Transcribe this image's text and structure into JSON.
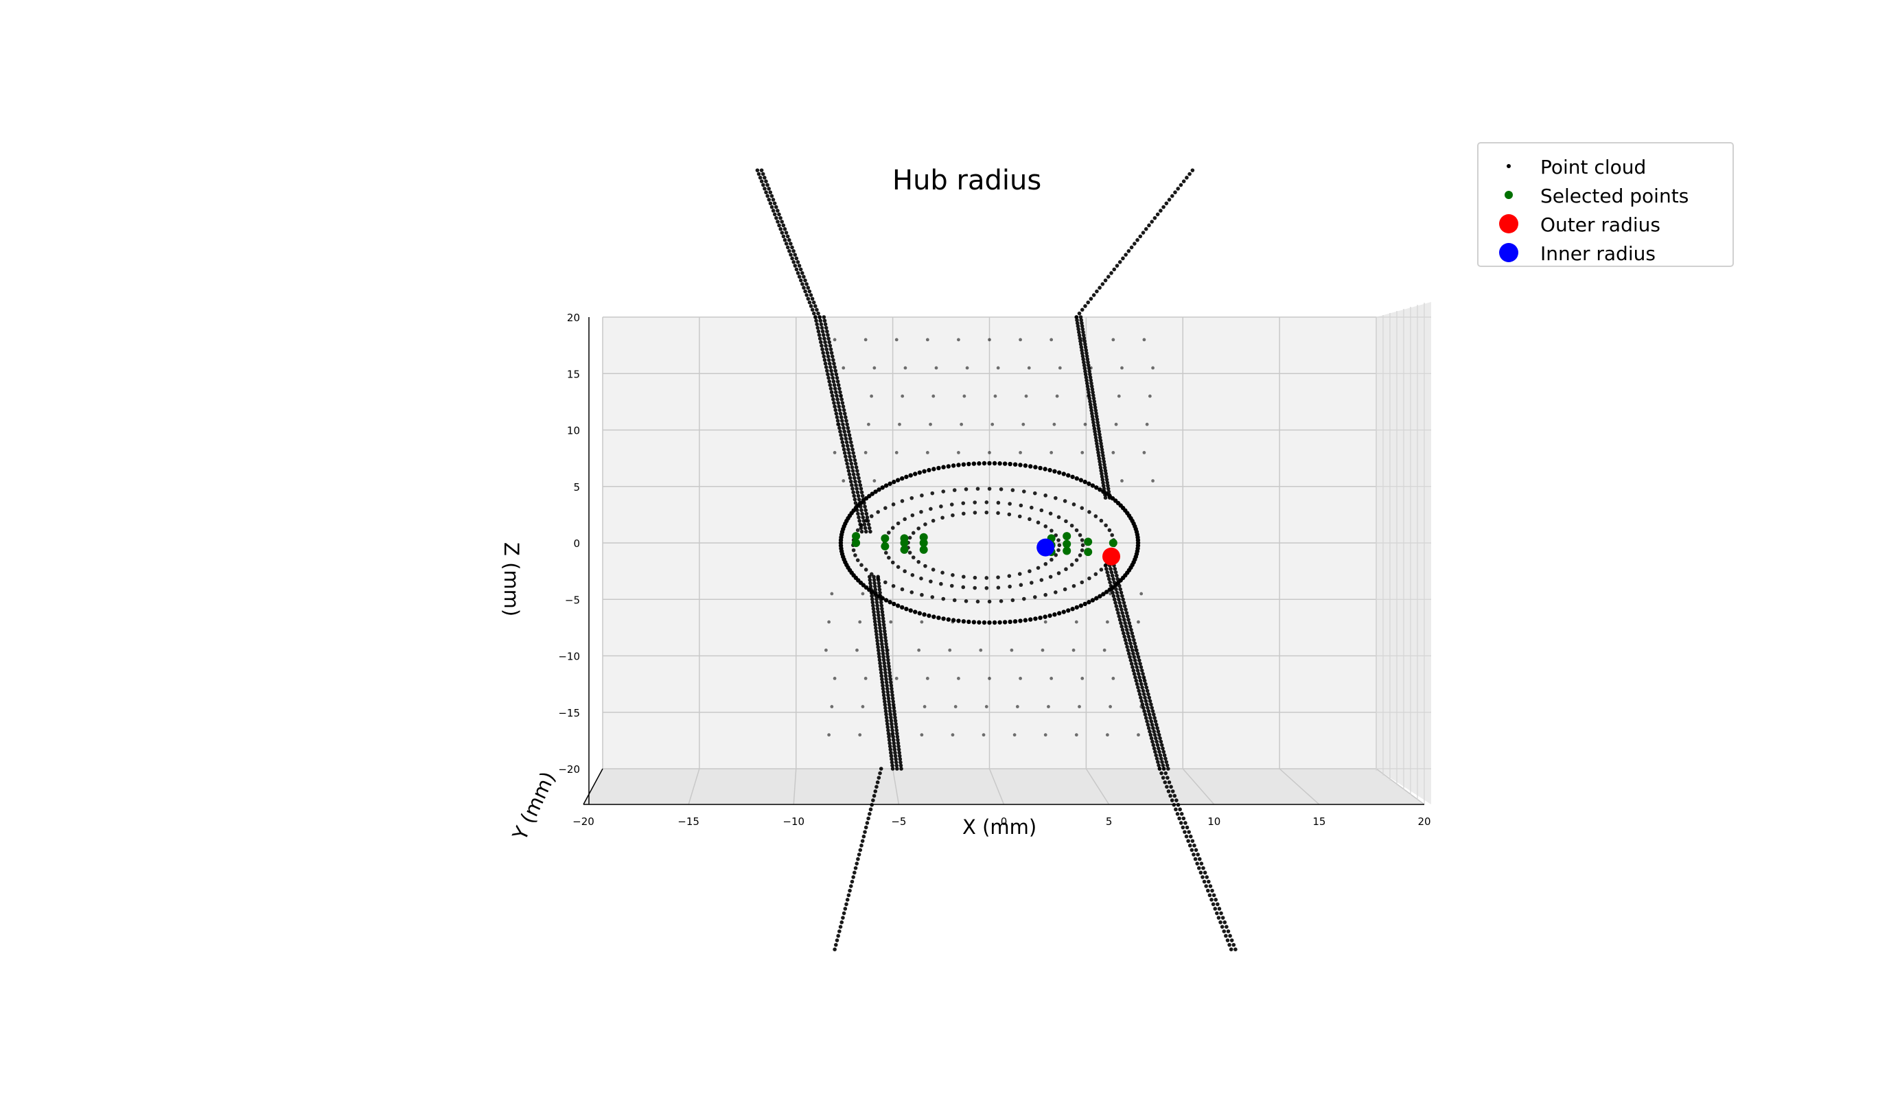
{
  "chart_data": {
    "type": "scatter",
    "title": "Hub radius",
    "xlabel": "X (mm)",
    "ylabel": "Y (mm)",
    "zlabel": "Z (mm)",
    "xlim": [
      -20,
      20
    ],
    "zlim": [
      -20,
      20
    ],
    "view": "3d, viewed along Y axis (front view)",
    "grid": true,
    "legend_position": "top-right",
    "x_ticks": [
      "−20",
      "−15",
      "−10",
      "−5",
      "0",
      "5",
      "10",
      "15",
      "20"
    ],
    "z_ticks": [
      "20",
      "15",
      "10",
      "5",
      "0",
      "−5",
      "−10",
      "−15",
      "−20"
    ],
    "series": [
      {
        "name": "Point cloud",
        "color": "#000000",
        "marker": "small dot",
        "description_points": {
          "outer_hub_circle_radius": 6.3,
          "inner_rings_radii": [
            5.0,
            3.8,
            2.9
          ],
          "left_strand_x_at_z20": -9.0,
          "left_strand_x_at_z_minus20": -5.5,
          "right_strand_x_at_z20": 4.5,
          "right_strand_x_at_z_minus20": 8.8
        }
      },
      {
        "name": "Selected points",
        "color": "#007000",
        "marker": "dot",
        "points": [
          {
            "x": -6.9,
            "z": 0.6
          },
          {
            "x": -6.9,
            "z": 0.0
          },
          {
            "x": -5.4,
            "z": 0.4
          },
          {
            "x": -5.4,
            "z": -0.3
          },
          {
            "x": -4.4,
            "z": 0.4
          },
          {
            "x": -4.4,
            "z": 0.0
          },
          {
            "x": -4.4,
            "z": -0.6
          },
          {
            "x": -3.4,
            "z": 0.5
          },
          {
            "x": -3.4,
            "z": 0.0
          },
          {
            "x": -3.4,
            "z": -0.6
          },
          {
            "x": 3.2,
            "z": 0.4
          },
          {
            "x": 3.2,
            "z": -0.2
          },
          {
            "x": 3.2,
            "z": -0.8
          },
          {
            "x": 4.0,
            "z": 0.6
          },
          {
            "x": 4.0,
            "z": -0.1
          },
          {
            "x": 4.0,
            "z": -0.7
          },
          {
            "x": 5.1,
            "z": 0.1
          },
          {
            "x": 5.1,
            "z": -0.8
          },
          {
            "x": 6.4,
            "z": 0.0
          },
          {
            "x": 6.4,
            "z": -1.0
          }
        ]
      },
      {
        "name": "Outer radius",
        "color": "#ff0000",
        "marker": "large dot",
        "points": [
          {
            "x": 6.3,
            "z": -1.2
          }
        ]
      },
      {
        "name": "Inner radius",
        "color": "#0000ff",
        "marker": "large dot",
        "points": [
          {
            "x": 2.9,
            "z": -0.4
          }
        ]
      }
    ]
  }
}
